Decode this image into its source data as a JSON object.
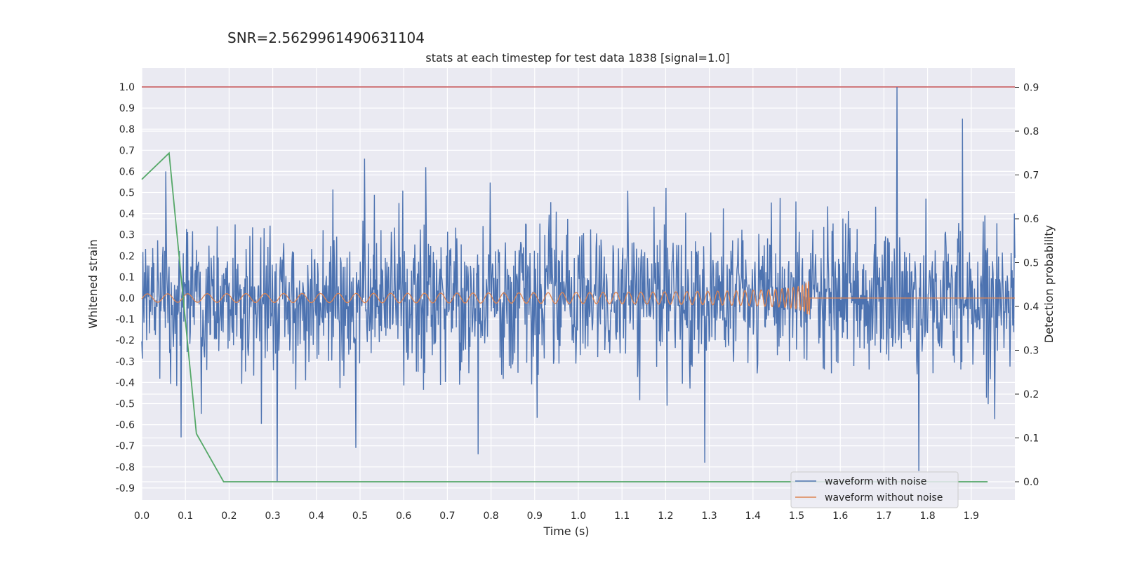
{
  "chart_data": {
    "type": "line",
    "suptitle": "SNR=2.5629961490631104",
    "title": "stats at each timestep for test data 1838 [signal=1.0]",
    "xlabel": "Time (s)",
    "ylabel": "Whitened strain",
    "y2label": "Detection probability",
    "xlim": [
      0.0,
      2.0
    ],
    "ylim": [
      -1.0,
      1.1
    ],
    "y2lim": [
      -0.04,
      0.94
    ],
    "x_ticks": [
      "0.0",
      "0.1",
      "0.2",
      "0.3",
      "0.4",
      "0.5",
      "0.6",
      "0.7",
      "0.8",
      "0.9",
      "1.0",
      "1.1",
      "1.2",
      "1.3",
      "1.4",
      "1.5",
      "1.6",
      "1.7",
      "1.8",
      "1.9"
    ],
    "y_ticks": [
      "1.0",
      "0.9",
      "0.8",
      "0.7",
      "0.6",
      "0.5",
      "0.4",
      "0.3",
      "0.2",
      "0.1",
      "0.0",
      "-0.1",
      "-0.2",
      "-0.3",
      "-0.4",
      "-0.5",
      "-0.6",
      "-0.7",
      "-0.8",
      "-0.9"
    ],
    "y2_ticks": [
      "0.9",
      "0.8",
      "0.7",
      "0.6",
      "0.5",
      "0.4",
      "0.3",
      "0.2",
      "0.1",
      "0.0"
    ],
    "grid": true,
    "legend_position": "bottom-right",
    "series": [
      {
        "name": "waveform with noise",
        "color": "#4c72b0",
        "axis": "left",
        "description": "dense noisy strain trace spanning roughly -0.87 to 1.0",
        "peaks": [
          {
            "x": 0.055,
            "y": 0.6
          },
          {
            "x": 0.09,
            "y": -0.66
          },
          {
            "x": 0.31,
            "y": -0.87
          },
          {
            "x": 0.51,
            "y": 0.66
          },
          {
            "x": 0.49,
            "y": -0.71
          },
          {
            "x": 0.77,
            "y": -0.74
          },
          {
            "x": 1.29,
            "y": -0.78
          },
          {
            "x": 1.73,
            "y": 1.0
          },
          {
            "x": 1.78,
            "y": -0.82
          },
          {
            "x": 1.88,
            "y": 0.85
          }
        ]
      },
      {
        "name": "waveform without noise",
        "color": "#dd8452",
        "axis": "left",
        "description": "chirp oscillation around 0 growing in frequency and amplitude until merger near t=1.53 s, flat afterwards",
        "merger_time": 1.53,
        "peak_amplitude": 0.08
      },
      {
        "name": "",
        "color": "#55a868",
        "axis": "right",
        "x": [
          0.0,
          0.0625,
          0.125,
          0.1875,
          1.9375
        ],
        "values": [
          0.69,
          0.75,
          0.11,
          0.0,
          0.0
        ]
      },
      {
        "name": "",
        "color": "#c44e52",
        "axis": "left",
        "type": "hline",
        "values": [
          1.0
        ]
      }
    ]
  }
}
